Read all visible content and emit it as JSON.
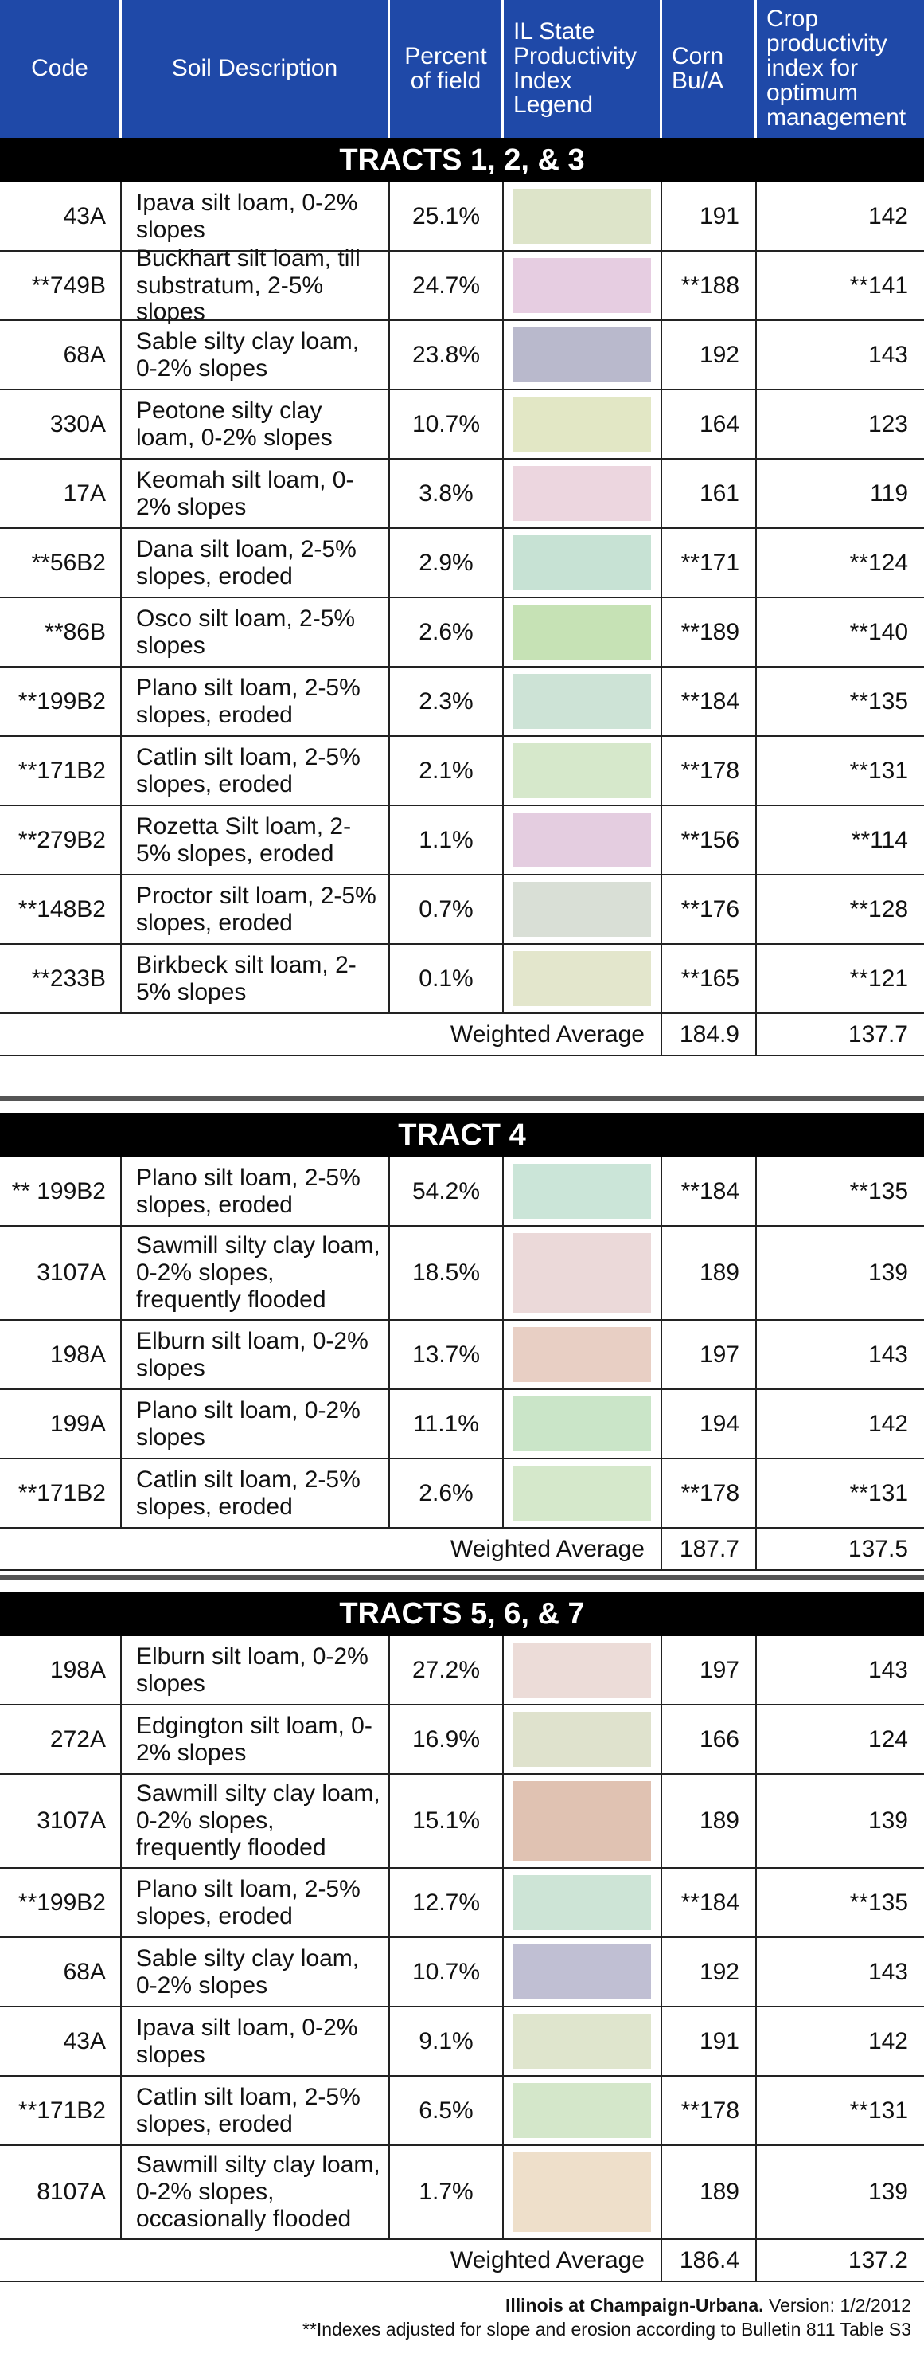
{
  "header": {
    "code": "Code",
    "soil_description": "Soil Description",
    "percent_of_field": "Percent of field",
    "legend": "IL State Productivity Index Legend",
    "corn": "Corn Bu/A",
    "cpi": "Crop productivity index for optimum management"
  },
  "tracts": [
    {
      "title": "TRACTS 1, 2, & 3",
      "rows": [
        {
          "code": "43A",
          "desc": "Ipava silt loam, 0-2% slopes",
          "pct": "25.1%",
          "color": "#dde4c9",
          "corn": "191",
          "cpi": "142"
        },
        {
          "code": "**749B",
          "desc": "Buckhart silt loam, till substratum, 2-5% slopes",
          "pct": "24.7%",
          "color": "#e6cde1",
          "corn": "**188",
          "cpi": "**141"
        },
        {
          "code": "68A",
          "desc": "Sable silty clay loam, 0-2% slopes",
          "pct": "23.8%",
          "color": "#b9b9cc",
          "corn": "192",
          "cpi": "143"
        },
        {
          "code": "330A",
          "desc": "Peotone silty clay loam, 0-2% slopes",
          "pct": "10.7%",
          "color": "#e2e7c5",
          "corn": "164",
          "cpi": "123"
        },
        {
          "code": "17A",
          "desc": "Keomah silt loam, 0-2% slopes",
          "pct": "3.8%",
          "color": "#ecd6df",
          "corn": "161",
          "cpi": "119"
        },
        {
          "code": "**56B2",
          "desc": "Dana silt loam, 2-5% slopes, eroded",
          "pct": "2.9%",
          "color": "#c7e2d4",
          "corn": "**171",
          "cpi": "**124"
        },
        {
          "code": "**86B",
          "desc": "Osco silt loam, 2-5% slopes",
          "pct": "2.6%",
          "color": "#c6e2b5",
          "corn": "**189",
          "cpi": "**140"
        },
        {
          "code": "**199B2",
          "desc": "Plano silt loam, 2-5% slopes, eroded",
          "pct": "2.3%",
          "color": "#cde3d6",
          "corn": "**184",
          "cpi": "**135"
        },
        {
          "code": "**171B2",
          "desc": "Catlin silt loam, 2-5% slopes, eroded",
          "pct": "2.1%",
          "color": "#d6e8cb",
          "corn": "**178",
          "cpi": "**131"
        },
        {
          "code": "**279B2",
          "desc": "Rozetta Silt loam, 2-5% slopes, eroded",
          "pct": "1.1%",
          "color": "#e4cde0",
          "corn": "**156",
          "cpi": "**114"
        },
        {
          "code": "**148B2",
          "desc": "Proctor silt loam, 2-5% slopes, eroded",
          "pct": "0.7%",
          "color": "#d9dfd6",
          "corn": "**176",
          "cpi": "**128"
        },
        {
          "code": "**233B",
          "desc": "Birkbeck silt loam, 2-5% slopes",
          "pct": "0.1%",
          "color": "#e3e6cc",
          "corn": "**165",
          "cpi": "**121"
        }
      ],
      "avg_label": "Weighted Average",
      "avg_corn": "184.9",
      "avg_cpi": "137.7"
    },
    {
      "title": "TRACT 4",
      "rows": [
        {
          "code": "** 199B2",
          "desc": "Plano silt loam, 2-5% slopes, eroded",
          "pct": "54.2%",
          "color": "#cbe5d8",
          "corn": "**184",
          "cpi": "**135"
        },
        {
          "code": "3107A",
          "desc": "Sawmill silty clay loam, 0-2% slopes, frequently flooded",
          "pct": "18.5%",
          "color": "#ebd9d9",
          "corn": "189",
          "cpi": "139"
        },
        {
          "code": "198A",
          "desc": "Elburn silt loam, 0-2% slopes",
          "pct": "13.7%",
          "color": "#e8cfc4",
          "corn": "197",
          "cpi": "143"
        },
        {
          "code": "199A",
          "desc": "Plano silt loam, 0-2% slopes",
          "pct": "11.1%",
          "color": "#cae5c8",
          "corn": "194",
          "cpi": "142"
        },
        {
          "code": "**171B2",
          "desc": "Catlin silt loam, 2-5% slopes, eroded",
          "pct": "2.6%",
          "color": "#d5e8cb",
          "corn": "**178",
          "cpi": "**131"
        }
      ],
      "avg_label": "Weighted Average",
      "avg_corn": "187.7",
      "avg_cpi": "137.5"
    },
    {
      "title": "TRACTS 5, 6, & 7",
      "rows": [
        {
          "code": "198A",
          "desc": "Elburn silt loam, 0-2% slopes",
          "pct": "27.2%",
          "color": "#ecdcd8",
          "corn": "197",
          "cpi": "143"
        },
        {
          "code": "272A",
          "desc": "Edgington silt loam, 0-2% slopes",
          "pct": "16.9%",
          "color": "#dfe2cd",
          "corn": "166",
          "cpi": "124"
        },
        {
          "code": "3107A",
          "desc": "Sawmill silty clay loam, 0-2% slopes, frequently flooded",
          "pct": "15.1%",
          "color": "#e0c2b2",
          "corn": "189",
          "cpi": "139"
        },
        {
          "code": "**199B2",
          "desc": "Plano silt loam, 2-5% slopes, eroded",
          "pct": "12.7%",
          "color": "#cde4d6",
          "corn": "**184",
          "cpi": "**135"
        },
        {
          "code": "68A",
          "desc": "Sable silty clay loam, 0-2% slopes",
          "pct": "10.7%",
          "color": "#c0bfd3",
          "corn": "192",
          "cpi": "143"
        },
        {
          "code": "43A",
          "desc": "Ipava silt loam, 0-2% slopes",
          "pct": "9.1%",
          "color": "#dfe5cd",
          "corn": "191",
          "cpi": "142"
        },
        {
          "code": "**171B2",
          "desc": "Catlin silt loam, 2-5% slopes, eroded",
          "pct": "6.5%",
          "color": "#d4e7ca",
          "corn": "**178",
          "cpi": "**131"
        },
        {
          "code": "8107A",
          "desc": "Sawmill silty clay loam, 0-2% slopes, occasionally flooded",
          "pct": "1.7%",
          "color": "#eedfca",
          "corn": "189",
          "cpi": "139"
        }
      ],
      "avg_label": "Weighted Average",
      "avg_corn": "186.4",
      "avg_cpi": "137.2"
    }
  ],
  "footer": {
    "source_bold": "Illinois at Champaign-Urbana.",
    "version": " Version: 1/2/2012",
    "note": "**Indexes adjusted for slope and erosion according to Bulletin 811 Table S3"
  }
}
